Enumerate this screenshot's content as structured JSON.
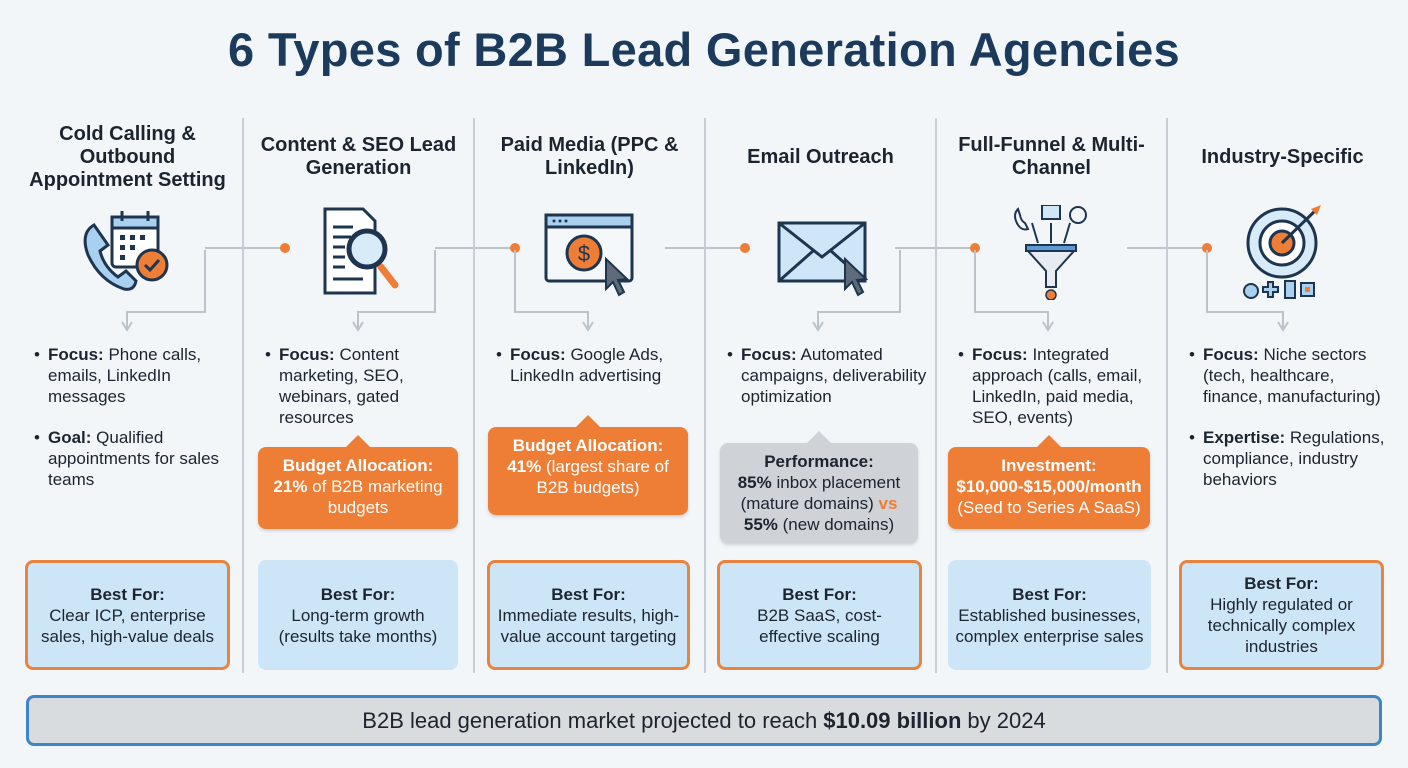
{
  "title": "6 Types of B2B Lead Generation Agencies",
  "colors": {
    "navy": "#1b3a5c",
    "orange": "#ee7d35",
    "light_blue": "#cde6f7",
    "grey": "#cfd2d6",
    "border_blue": "#3d86c6"
  },
  "columns": [
    {
      "heading": "Cold Calling & Outbound Appointment Setting",
      "icon": "phone-calendar-check-icon",
      "bullets": [
        {
          "label": "Focus:",
          "text": " Phone calls, emails, LinkedIn messages"
        },
        {
          "label": "Goal:",
          "text": " Qualified appointments for sales teams"
        }
      ],
      "callout": null,
      "best_for": {
        "title": "Best For:",
        "text": "Clear ICP, enterprise sales, high-value deals",
        "bordered": true
      }
    },
    {
      "heading": "Content & SEO Lead Generation",
      "icon": "document-magnifier-icon",
      "bullets": [
        {
          "label": "Focus:",
          "text": " Content marketing, SEO, webinars, gated resources"
        }
      ],
      "callout": {
        "style": "orange",
        "title": "Budget Allocation:",
        "segments": [
          {
            "t": "21%",
            "s": "b"
          },
          {
            "t": " of B2B marketing budgets",
            "s": ""
          }
        ]
      },
      "best_for": {
        "title": "Best For:",
        "text": "Long-term growth (results take months)",
        "bordered": false
      }
    },
    {
      "heading": "Paid Media (PPC & LinkedIn)",
      "icon": "browser-dollar-cursor-icon",
      "bullets": [
        {
          "label": "Focus:",
          "text": " Google Ads, LinkedIn advertising"
        }
      ],
      "callout": {
        "style": "orange",
        "title": "Budget Allocation:",
        "segments": [
          {
            "t": "41%",
            "s": "b"
          },
          {
            "t": " (largest share of B2B budgets)",
            "s": ""
          }
        ]
      },
      "best_for": {
        "title": "Best For:",
        "text": "Immediate results, high-value account targeting",
        "bordered": true
      }
    },
    {
      "heading": "Email Outreach",
      "icon": "envelope-cursor-icon",
      "bullets": [
        {
          "label": "Focus:",
          "text": " Automated campaigns, deliverability optimization"
        }
      ],
      "callout": {
        "style": "grey",
        "title": "Performance:",
        "segments": [
          {
            "t": "85%",
            "s": "b"
          },
          {
            "t": " inbox placement (mature domains) ",
            "s": ""
          },
          {
            "t": "vs",
            "s": "o"
          },
          {
            "t": " ",
            "s": ""
          },
          {
            "t": "55%",
            "s": "b"
          },
          {
            "t": " (new domains)",
            "s": ""
          }
        ]
      },
      "best_for": {
        "title": "Best For:",
        "text": "B2B SaaS, cost-effective scaling",
        "bordered": true
      }
    },
    {
      "heading": "Full-Funnel & Multi-Channel",
      "icon": "funnel-channels-icon",
      "bullets": [
        {
          "label": "Focus:",
          "text": " Integrated approach (calls, email, LinkedIn, paid media, SEO, events)"
        }
      ],
      "callout": {
        "style": "orange",
        "title": "Investment:",
        "segments": [
          {
            "t": "$10,000-$15,000/month",
            "s": "b"
          },
          {
            "t": " (Seed to Series A SaaS)",
            "s": ""
          }
        ]
      },
      "best_for": {
        "title": "Best For:",
        "text": "Established businesses, complex enterprise sales",
        "bordered": false
      }
    },
    {
      "heading": "Industry-Specific",
      "icon": "target-arrow-industries-icon",
      "bullets": [
        {
          "label": "Focus:",
          "text": " Niche sectors (tech, healthcare, finance, manufacturing)"
        },
        {
          "label": "Expertise:",
          "text": " Regulations, compliance, industry behaviors"
        }
      ],
      "callout": null,
      "best_for": {
        "title": "Best For:",
        "text": "Highly regulated or technically complex industries",
        "bordered": true
      }
    }
  ],
  "footer": {
    "before": "B2B lead generation market projected to reach",
    "highlight": "$10.09 billion",
    "after": "by 2024"
  }
}
